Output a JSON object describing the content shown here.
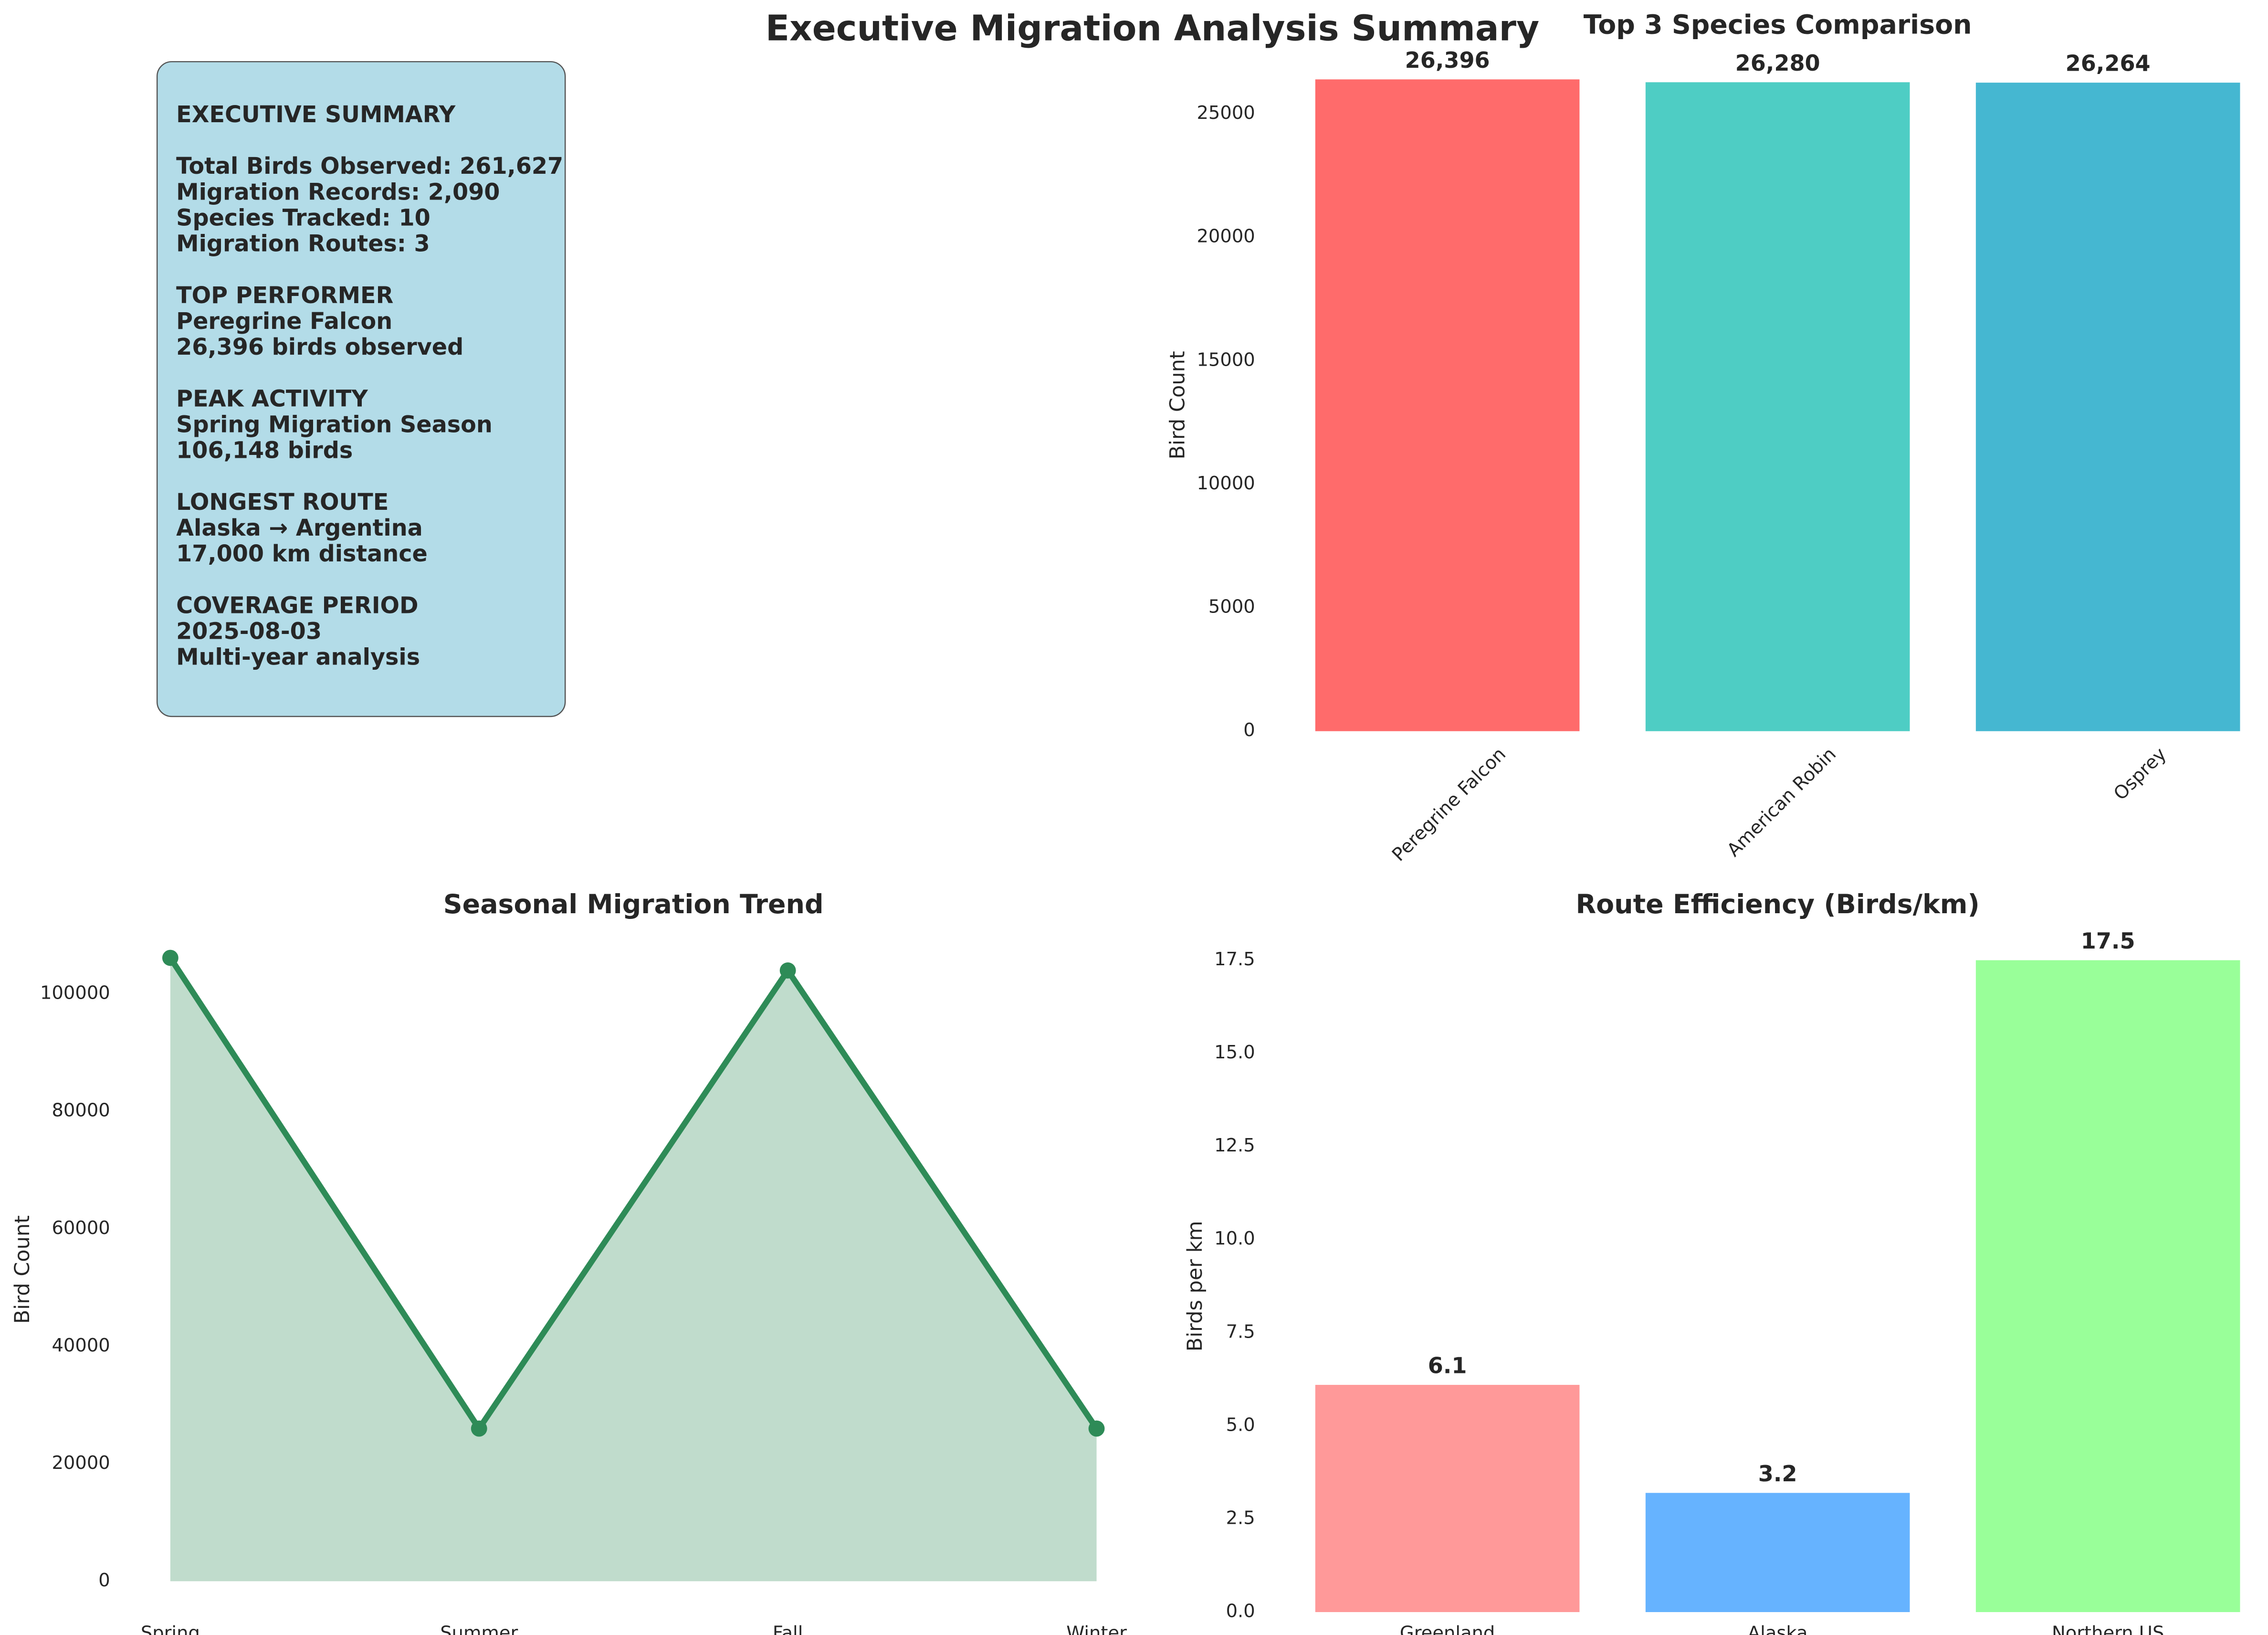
{
  "title": "Executive Migration Analysis Summary",
  "summary": {
    "sections": [
      [
        "EXECUTIVE SUMMARY"
      ],
      [
        "Total Birds Observed: 261,627",
        "Migration Records: 2,090",
        "Species Tracked: 10",
        "Migration Routes: 3"
      ],
      [
        "TOP PERFORMER",
        "Peregrine Falcon",
        "26,396 birds observed"
      ],
      [
        "PEAK ACTIVITY",
        "Spring Migration Season",
        "106,148 birds"
      ],
      [
        "LONGEST ROUTE",
        "Alaska → Argentina",
        "17,000 km distance"
      ],
      [
        "COVERAGE PERIOD",
        "2025-08-03",
        "Multi-year analysis"
      ]
    ]
  },
  "chart_data": [
    {
      "type": "bar",
      "title": "Top 3 Species Comparison",
      "ylabel": "Bird Count",
      "categories": [
        "Peregrine Falcon",
        "American Robin",
        "Osprey"
      ],
      "values": [
        26396,
        26280,
        26264
      ],
      "value_labels": [
        "26,396",
        "26,280",
        "26,264"
      ],
      "colors": [
        "#ff6b6b",
        "#4ecdc4",
        "#45b7d1"
      ],
      "ylim": [
        0,
        26400
      ],
      "yticks": [
        0,
        5000,
        10000,
        15000,
        20000,
        25000
      ]
    },
    {
      "type": "line",
      "title": "Seasonal Migration Trend",
      "ylabel": "Bird Count",
      "categories": [
        "Spring",
        "Summer",
        "Fall",
        "Winter"
      ],
      "values": [
        106148,
        26000,
        104000,
        26000
      ],
      "color": "#2e8b57",
      "fill": true,
      "ylim": [
        0,
        106148
      ],
      "yticks": [
        0,
        20000,
        40000,
        60000,
        80000,
        100000
      ]
    },
    {
      "type": "bar",
      "title": "Route Efficiency (Birds/km)",
      "ylabel": "Birds per km",
      "categories": [
        "Greenland",
        "Alaska",
        "Northern US"
      ],
      "values": [
        6.1,
        3.2,
        17.5
      ],
      "colors": [
        "#ff9999",
        "#66b3ff",
        "#99ff99"
      ],
      "ylim": [
        0,
        17.5
      ],
      "yticks": [
        {
          "value": 0,
          "label": "0.0"
        },
        2.5,
        {
          "value": 5,
          "label": "5.0"
        },
        7.5,
        {
          "value": 10,
          "label": "10.0"
        },
        12.5,
        {
          "value": 15,
          "label": "15.0"
        },
        17.5
      ]
    }
  ]
}
